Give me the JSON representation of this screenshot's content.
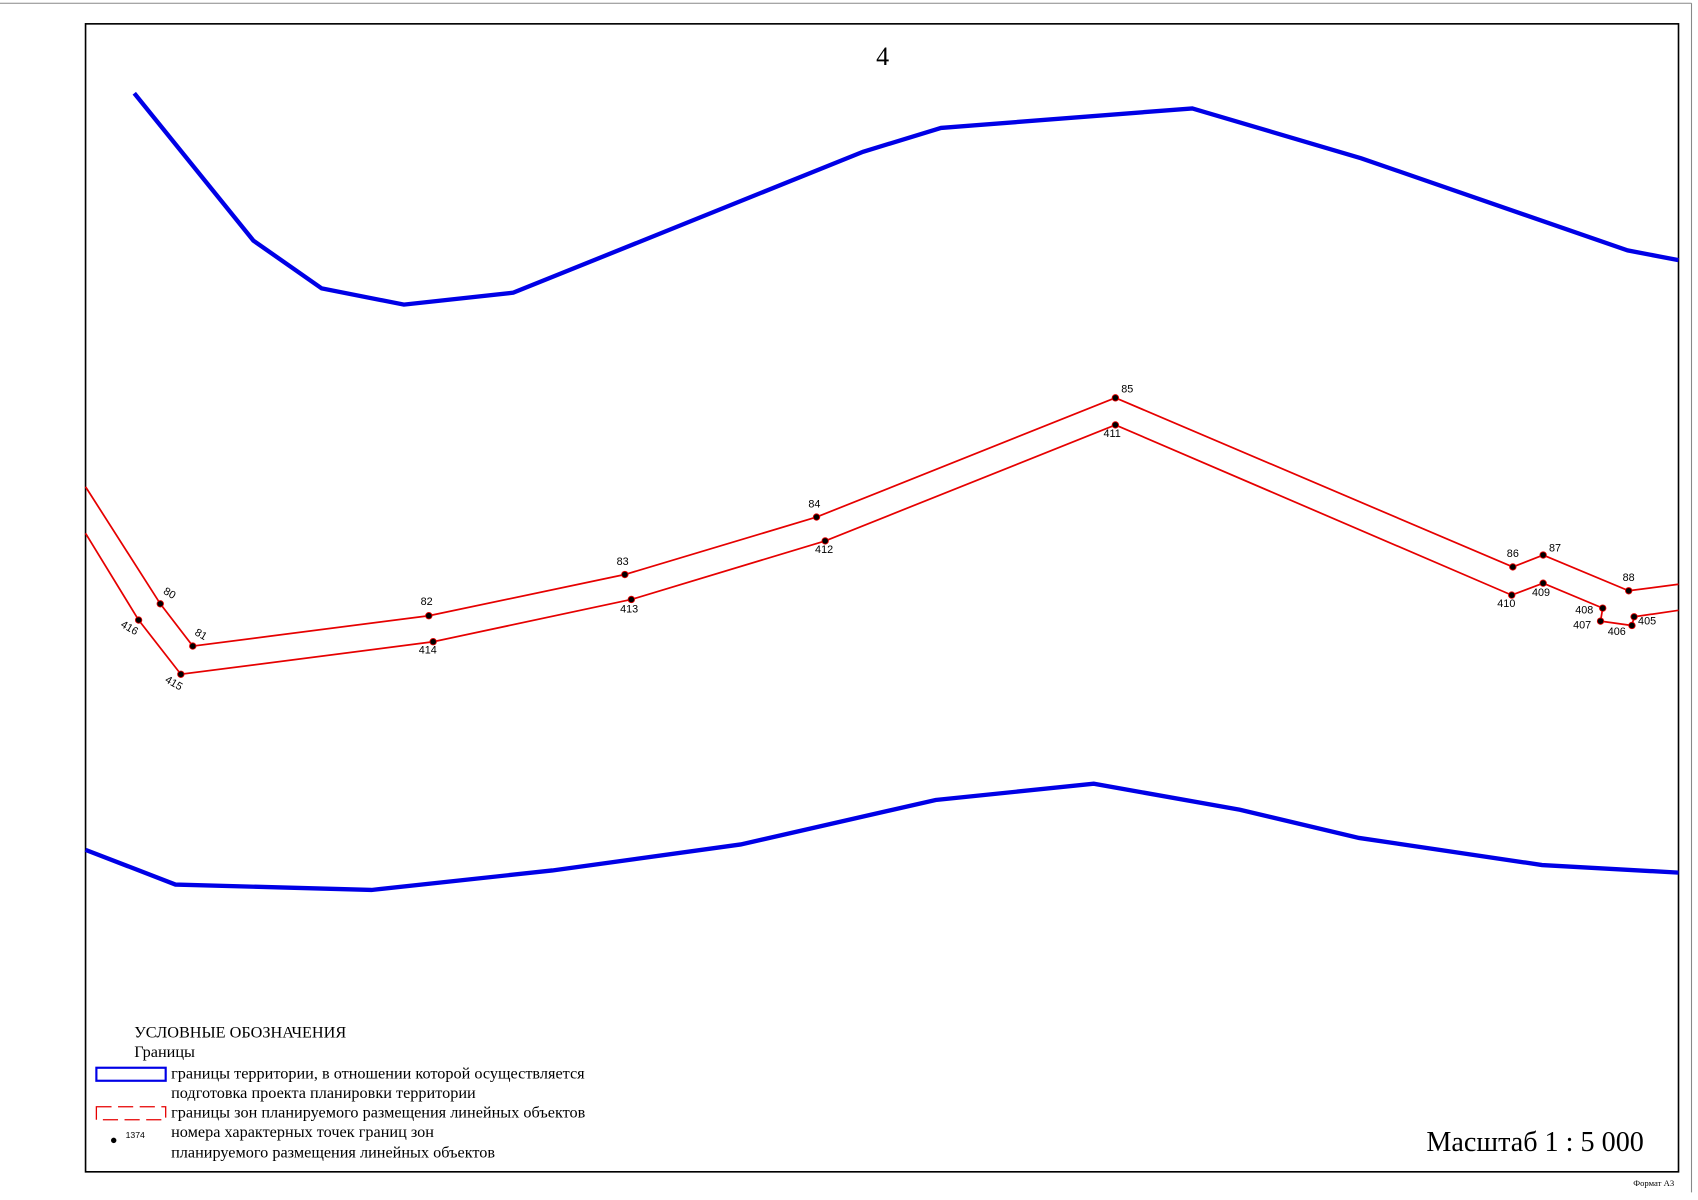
{
  "page_number": "4",
  "points": [
    {
      "label": "80"
    },
    {
      "label": "81"
    },
    {
      "label": "82"
    },
    {
      "label": "83"
    },
    {
      "label": "84"
    },
    {
      "label": "85"
    },
    {
      "label": "86"
    },
    {
      "label": "87"
    },
    {
      "label": "88"
    },
    {
      "label": "416"
    },
    {
      "label": "415"
    },
    {
      "label": "414"
    },
    {
      "label": "413"
    },
    {
      "label": "412"
    },
    {
      "label": "411"
    },
    {
      "label": "410"
    },
    {
      "label": "409"
    },
    {
      "label": "408"
    },
    {
      "label": "407"
    },
    {
      "label": "406"
    },
    {
      "label": "405"
    }
  ],
  "legend": {
    "title": "УСЛОВНЫЕ ОБОЗНАЧЕНИЯ",
    "subtitle": "Границы",
    "items": [
      {
        "lines": [
          "границы территории, в отношении которой осуществляется",
          "подготовка проекта планировки территории"
        ]
      },
      {
        "lines": [
          "границы зон планируемого размещения линейных объектов"
        ]
      },
      {
        "sample": "1374",
        "lines": [
          "номера характерных точек границ зон",
          "планируемого размещения линейных объектов"
        ]
      }
    ]
  },
  "scale": "Масштаб 1 : 5 000",
  "format": "Формат А3"
}
